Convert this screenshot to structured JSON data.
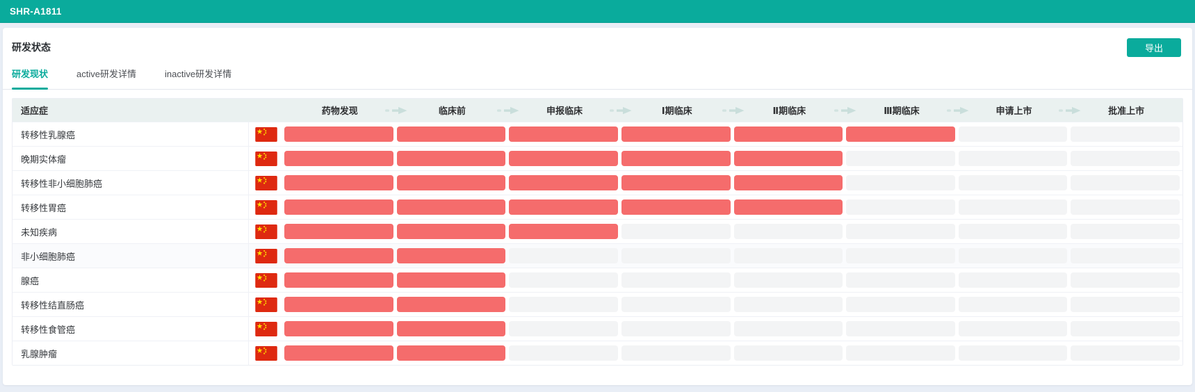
{
  "app": {
    "title": "SHR-A1811"
  },
  "page": {
    "title": "研发状态",
    "export_label": "导出"
  },
  "tabs": [
    {
      "name": "rd-current-status",
      "label": "研发现状",
      "active": true
    },
    {
      "name": "active-rd-detail",
      "label": "active研发详情",
      "active": false
    },
    {
      "name": "inactive-rd-detail",
      "label": "inactive研发详情",
      "active": false
    }
  ],
  "table": {
    "indication_header": "适应症",
    "phases": [
      "药物发现",
      "临床前",
      "申报临床",
      "Ⅰ期临床",
      "Ⅱ期临床",
      "Ⅲ期临床",
      "申请上市",
      "批准上市"
    ],
    "rows": [
      {
        "indication": "转移性乳腺癌",
        "country_icon": "china-flag",
        "progress": 6,
        "highlight": false
      },
      {
        "indication": "晚期实体瘤",
        "country_icon": "china-flag",
        "progress": 5,
        "highlight": false
      },
      {
        "indication": "转移性非小细胞肺癌",
        "country_icon": "china-flag",
        "progress": 5,
        "highlight": false
      },
      {
        "indication": "转移性胃癌",
        "country_icon": "china-flag",
        "progress": 5,
        "highlight": false
      },
      {
        "indication": "未知疾病",
        "country_icon": "china-flag",
        "progress": 3,
        "highlight": false
      },
      {
        "indication": "非小细胞肺癌",
        "country_icon": "china-flag",
        "progress": 2,
        "highlight": true
      },
      {
        "indication": "腺癌",
        "country_icon": "china-flag",
        "progress": 2,
        "highlight": false
      },
      {
        "indication": "转移性结直肠癌",
        "country_icon": "china-flag",
        "progress": 2,
        "highlight": false
      },
      {
        "indication": "转移性食管癌",
        "country_icon": "china-flag",
        "progress": 2,
        "highlight": false
      },
      {
        "indication": "乳腺肿瘤",
        "country_icon": "china-flag",
        "progress": 2,
        "highlight": false
      }
    ]
  },
  "colors": {
    "accent": "#0aab9c",
    "bar_active": "#f56c6c",
    "bar_empty": "#f3f4f5",
    "header_bg": "#eaf1f0",
    "page_bg": "#e9eef6",
    "arrow": "#c9dedb",
    "flag_red": "#de2910",
    "flag_yellow": "#ffde00"
  }
}
